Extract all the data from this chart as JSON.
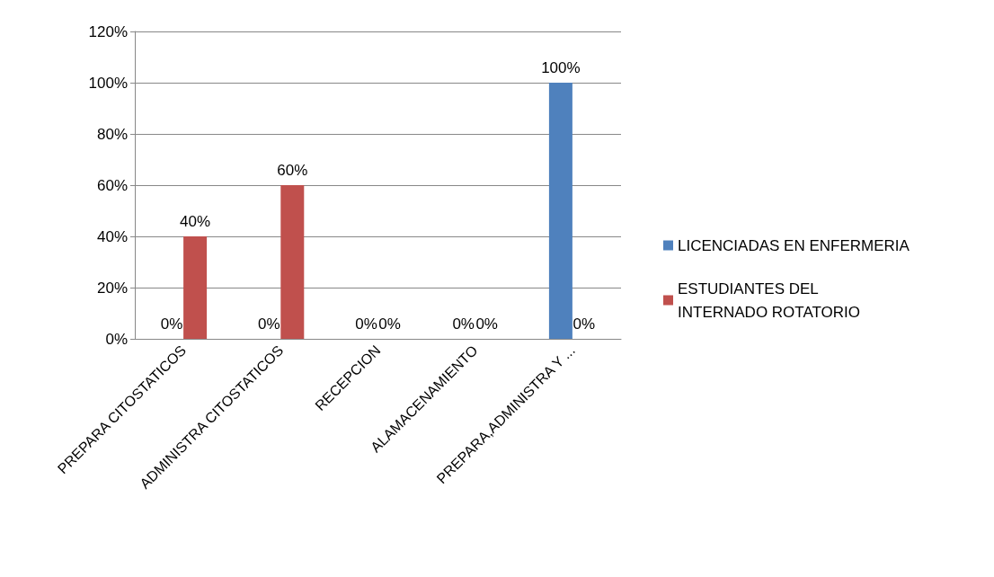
{
  "chart_data": {
    "type": "bar",
    "categories": [
      "PREPARA CITOSTATICOS",
      "ADMINISTRA CITOSTATICOS",
      "RECEPCION",
      "ALAMACENAMIENTO",
      "PREPARA,ADMINISTRA Y ..."
    ],
    "series": [
      {
        "name": "LICENCIADAS EN ENFERMERIA",
        "color": "#4f81bd",
        "values": [
          0,
          0,
          0,
          0,
          100
        ],
        "value_labels": [
          "0%",
          "0%",
          "0%",
          "0%",
          "100%"
        ]
      },
      {
        "name": "ESTUDIANTES DEL INTERNADO ROTATORIO",
        "color": "#c0504d",
        "values": [
          40,
          60,
          0,
          0,
          0
        ],
        "value_labels": [
          "40%",
          "60%",
          "0%",
          "0%",
          "0%"
        ]
      }
    ],
    "ylim": [
      0,
      120
    ],
    "yticks": [
      {
        "value": 0,
        "label": "0%"
      },
      {
        "value": 20,
        "label": "20%"
      },
      {
        "value": 40,
        "label": "40%"
      },
      {
        "value": 60,
        "label": "60%"
      },
      {
        "value": 80,
        "label": "80%"
      },
      {
        "value": 100,
        "label": "100%"
      },
      {
        "value": 120,
        "label": "120%"
      }
    ],
    "grid": "y",
    "legend": "right"
  }
}
